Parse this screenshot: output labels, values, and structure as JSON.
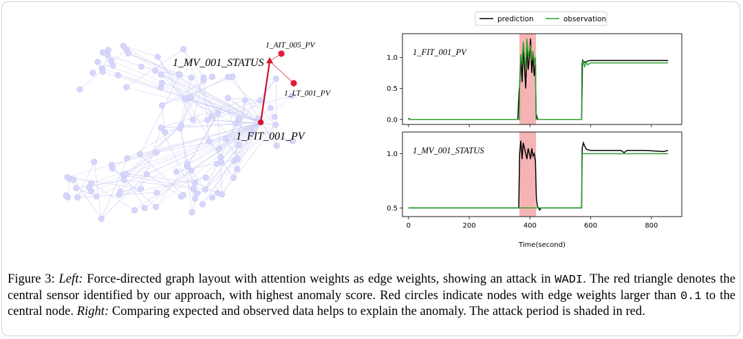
{
  "figure": {
    "graph": {
      "central_node": "1_FIT_001_PV",
      "triangle_node": "1_MV_001_STATUS",
      "red_nodes": [
        "1_AIT_005_PV",
        "1_LT_001_PV"
      ]
    },
    "caption": {
      "label": "Figure 3:",
      "left": "Left:",
      "part1": "Force-directed graph layout with attention weights as edge weights, showing an attack in",
      "dataset": "WADI",
      "part2": ". The red triangle denotes the central sensor identified by our approach, with highest anomaly score. Red circles indicate nodes with edge weights larger than",
      "threshold": "0.1",
      "part3": "to the central node.",
      "right": "Right:",
      "part4": "Comparing expected and observed data helps to explain the anomaly. The attack period is shaded in red."
    }
  },
  "chart_data": {
    "type": "line",
    "xlabel": "Time(second)",
    "xticks": [
      0,
      200,
      400,
      600,
      800
    ],
    "xlim": [
      -20,
      900
    ],
    "attack_period": [
      365,
      420
    ],
    "legend": [
      "prediction",
      "observation"
    ],
    "colors": {
      "prediction": "#000000",
      "observation": "#2ca02c",
      "attack": "#f4a6a6"
    },
    "panels": [
      {
        "label": "1_FIT_001_PV",
        "ylim": [
          -0.08,
          1.38
        ],
        "yticks": [
          "0.0",
          "0.5",
          "1.0"
        ],
        "series": [
          {
            "name": "prediction",
            "points": [
              [
                0,
                0.02
              ],
              [
                5,
                0.0
              ],
              [
                10,
                0.0
              ],
              [
                360,
                0.0
              ],
              [
                364,
                0.45
              ],
              [
                366,
                0.55
              ],
              [
                370,
                1.0
              ],
              [
                374,
                0.6
              ],
              [
                378,
                1.15
              ],
              [
                382,
                0.85
              ],
              [
                386,
                0.5
              ],
              [
                390,
                1.2
              ],
              [
                394,
                0.8
              ],
              [
                398,
                1.0
              ],
              [
                402,
                1.3
              ],
              [
                406,
                0.75
              ],
              [
                410,
                1.05
              ],
              [
                414,
                0.7
              ],
              [
                418,
                0.9
              ],
              [
                420,
                0.1
              ],
              [
                424,
                0.02
              ],
              [
                428,
                0.0
              ],
              [
                570,
                0.0
              ],
              [
                573,
                0.95
              ],
              [
                580,
                0.92
              ],
              [
                590,
                0.94
              ],
              [
                600,
                0.95
              ],
              [
                650,
                0.95
              ],
              [
                700,
                0.95
              ],
              [
                800,
                0.95
              ],
              [
                855,
                0.95
              ]
            ]
          },
          {
            "name": "observation",
            "points": [
              [
                0,
                0.0
              ],
              [
                360,
                0.0
              ],
              [
                365,
                0.0
              ],
              [
                366,
                0.6
              ],
              [
                370,
                1.05
              ],
              [
                374,
                0.9
              ],
              [
                378,
                1.25
              ],
              [
                382,
                1.0
              ],
              [
                386,
                0.8
              ],
              [
                390,
                1.3
              ],
              [
                394,
                1.0
              ],
              [
                398,
                1.1
              ],
              [
                402,
                1.2
              ],
              [
                406,
                0.95
              ],
              [
                410,
                1.1
              ],
              [
                414,
                0.9
              ],
              [
                418,
                1.0
              ],
              [
                420,
                0.0
              ],
              [
                570,
                0.0
              ],
              [
                571,
                0.9
              ],
              [
                575,
                0.95
              ],
              [
                580,
                0.85
              ],
              [
                585,
                0.92
              ],
              [
                590,
                0.88
              ],
              [
                600,
                0.91
              ],
              [
                700,
                0.91
              ],
              [
                855,
                0.91
              ]
            ]
          }
        ]
      },
      {
        "label": "1_MV_001_STATUS",
        "ylim": [
          0.42,
          1.2
        ],
        "yticks": [
          "0.5",
          "1.0"
        ],
        "series": [
          {
            "name": "prediction",
            "points": [
              [
                0,
                0.5
              ],
              [
                363,
                0.5
              ],
              [
                366,
                1.0
              ],
              [
                370,
                1.12
              ],
              [
                374,
                0.95
              ],
              [
                378,
                1.1
              ],
              [
                382,
                1.05
              ],
              [
                386,
                1.0
              ],
              [
                390,
                0.95
              ],
              [
                394,
                1.05
              ],
              [
                398,
                1.0
              ],
              [
                402,
                0.95
              ],
              [
                406,
                1.05
              ],
              [
                410,
                0.98
              ],
              [
                414,
                1.0
              ],
              [
                418,
                0.93
              ],
              [
                421,
                0.6
              ],
              [
                424,
                0.52
              ],
              [
                428,
                0.5
              ],
              [
                432,
                0.48
              ],
              [
                436,
                0.5
              ],
              [
                440,
                0.5
              ],
              [
                570,
                0.5
              ],
              [
                572,
                1.05
              ],
              [
                576,
                1.1
              ],
              [
                580,
                1.07
              ],
              [
                586,
                1.04
              ],
              [
                600,
                1.03
              ],
              [
                700,
                1.03
              ],
              [
                710,
                1.01
              ],
              [
                720,
                1.03
              ],
              [
                780,
                1.03
              ],
              [
                840,
                1.02
              ],
              [
                855,
                1.03
              ]
            ]
          },
          {
            "name": "observation",
            "points": [
              [
                0,
                0.5
              ],
              [
                570,
                0.5
              ],
              [
                571,
                1.0
              ],
              [
                855,
                1.0
              ]
            ]
          }
        ]
      }
    ]
  }
}
